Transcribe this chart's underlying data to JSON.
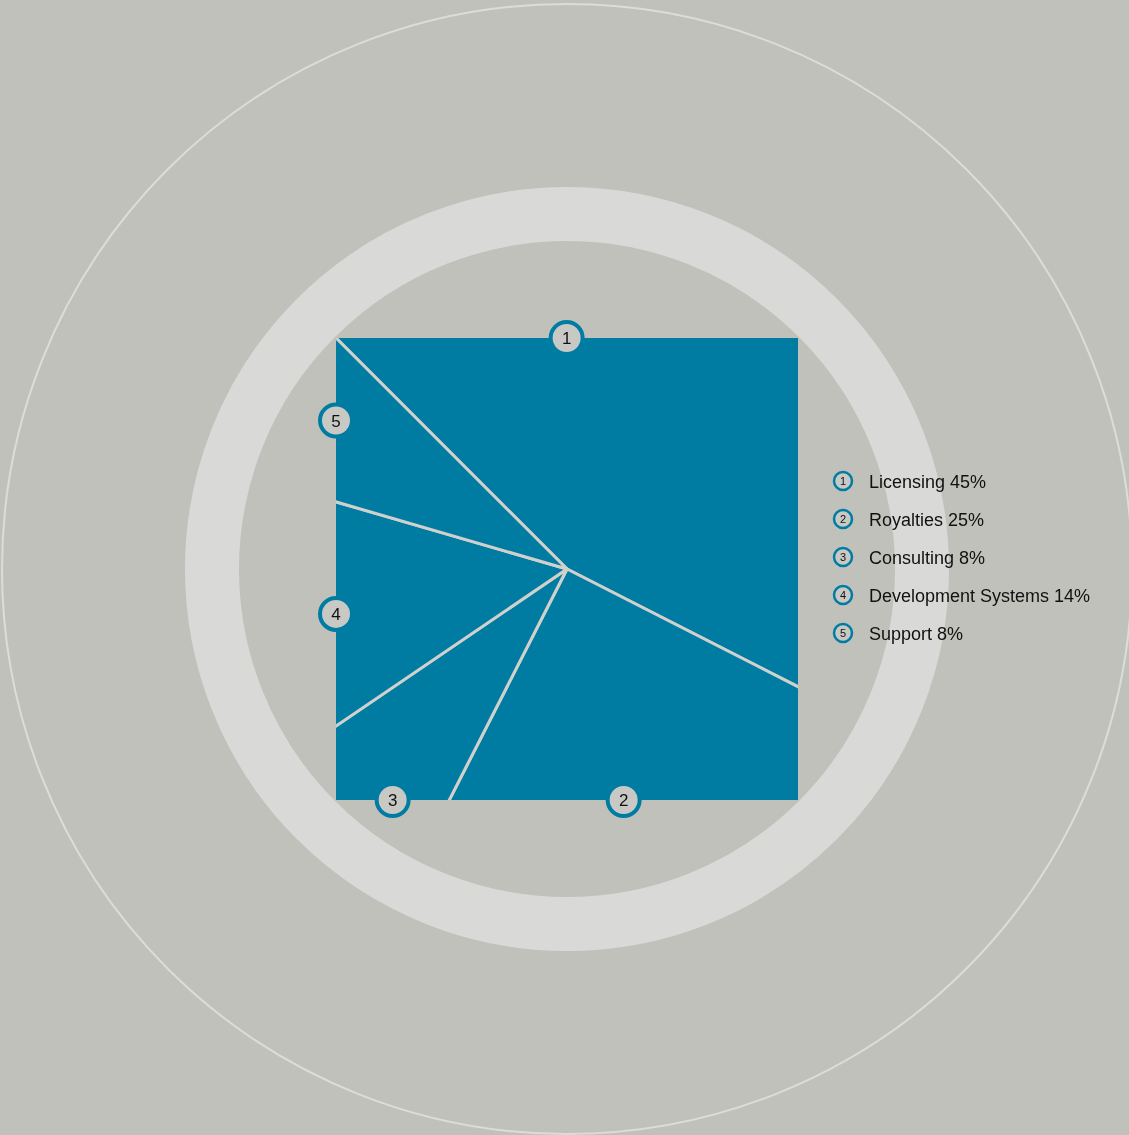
{
  "chart_data": {
    "type": "pie",
    "categories": [
      "Licensing",
      "Royalties",
      "Consulting",
      "Development Systems",
      "Support"
    ],
    "values": [
      45,
      25,
      8,
      14,
      8
    ],
    "colors": [
      "#007ca3",
      "#007ca3",
      "#007ca3",
      "#007ca3",
      "#007ca3"
    ],
    "value_labels": [
      "45%",
      "25%",
      "8%",
      "14%",
      "8%"
    ],
    "annotations": [
      "1",
      "2",
      "3",
      "4",
      "5"
    ],
    "legend": "right"
  }
}
